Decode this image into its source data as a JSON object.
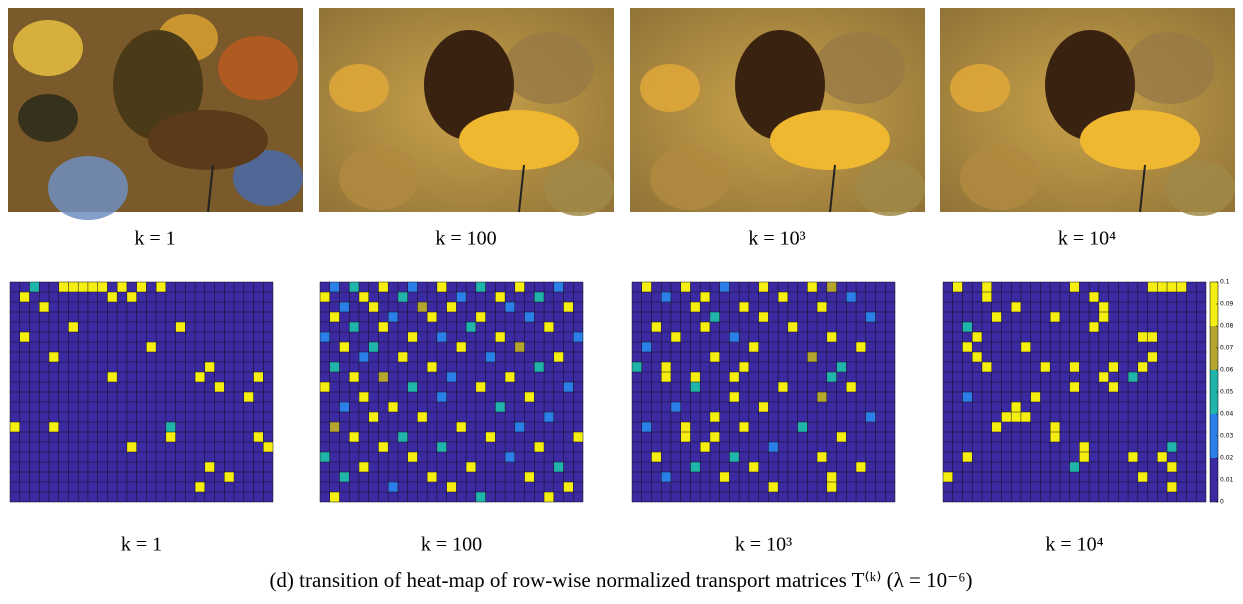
{
  "top_row": {
    "labels": [
      "k = 1",
      "k = 100",
      "k = 10³",
      "k = 10⁴"
    ]
  },
  "bottom_row": {
    "labels": [
      "k = 1",
      "k = 100",
      "k = 10³",
      "k = 10⁴"
    ],
    "heatmaps": [
      {
        "cells": [
          [
            0,
            2,
            0.05
          ],
          [
            0,
            5,
            0.1
          ],
          [
            0,
            6,
            0.1
          ],
          [
            0,
            7,
            0.1
          ],
          [
            0,
            8,
            0.1
          ],
          [
            0,
            9,
            0.1
          ],
          [
            0,
            11,
            0.1
          ],
          [
            0,
            13,
            0.1
          ],
          [
            0,
            15,
            0.1
          ],
          [
            1,
            1,
            0.1
          ],
          [
            1,
            10,
            0.1
          ],
          [
            1,
            12,
            0.1
          ],
          [
            2,
            3,
            0.1
          ],
          [
            4,
            6,
            0.1
          ],
          [
            4,
            17,
            0.1
          ],
          [
            5,
            1,
            0.1
          ],
          [
            6,
            14,
            0.1
          ],
          [
            7,
            4,
            0.1
          ],
          [
            8,
            20,
            0.1
          ],
          [
            9,
            10,
            0.1
          ],
          [
            9,
            19,
            0.1
          ],
          [
            9,
            25,
            0.1
          ],
          [
            10,
            21,
            0.1
          ],
          [
            11,
            24,
            0.1
          ],
          [
            14,
            0,
            0.1
          ],
          [
            14,
            4,
            0.1
          ],
          [
            14,
            16,
            0.05
          ],
          [
            15,
            16,
            0.1
          ],
          [
            15,
            25,
            0.1
          ],
          [
            16,
            12,
            0.1
          ],
          [
            16,
            26,
            0.1
          ],
          [
            18,
            20,
            0.1
          ],
          [
            19,
            22,
            0.1
          ],
          [
            20,
            19,
            0.1
          ]
        ]
      },
      {
        "cells": [
          [
            0,
            1,
            0.03
          ],
          [
            0,
            3,
            0.05
          ],
          [
            0,
            6,
            0.1
          ],
          [
            0,
            9,
            0.03
          ],
          [
            0,
            12,
            0.1
          ],
          [
            0,
            16,
            0.05
          ],
          [
            0,
            20,
            0.1
          ],
          [
            0,
            24,
            0.03
          ],
          [
            1,
            0,
            0.1
          ],
          [
            1,
            4,
            0.1
          ],
          [
            1,
            8,
            0.05
          ],
          [
            1,
            14,
            0.03
          ],
          [
            1,
            18,
            0.1
          ],
          [
            1,
            22,
            0.05
          ],
          [
            2,
            2,
            0.03
          ],
          [
            2,
            5,
            0.1
          ],
          [
            2,
            10,
            0.07
          ],
          [
            2,
            13,
            0.1
          ],
          [
            2,
            19,
            0.03
          ],
          [
            2,
            25,
            0.1
          ],
          [
            3,
            1,
            0.1
          ],
          [
            3,
            7,
            0.03
          ],
          [
            3,
            11,
            0.1
          ],
          [
            3,
            16,
            0.1
          ],
          [
            3,
            21,
            0.03
          ],
          [
            4,
            3,
            0.05
          ],
          [
            4,
            6,
            0.1
          ],
          [
            4,
            15,
            0.05
          ],
          [
            4,
            23,
            0.1
          ],
          [
            5,
            0,
            0.03
          ],
          [
            5,
            9,
            0.1
          ],
          [
            5,
            12,
            0.03
          ],
          [
            5,
            18,
            0.1
          ],
          [
            5,
            26,
            0.03
          ],
          [
            6,
            2,
            0.1
          ],
          [
            6,
            5,
            0.05
          ],
          [
            6,
            14,
            0.1
          ],
          [
            6,
            20,
            0.07
          ],
          [
            7,
            4,
            0.03
          ],
          [
            7,
            8,
            0.1
          ],
          [
            7,
            17,
            0.03
          ],
          [
            7,
            24,
            0.1
          ],
          [
            8,
            1,
            0.05
          ],
          [
            8,
            11,
            0.1
          ],
          [
            8,
            22,
            0.05
          ],
          [
            9,
            3,
            0.1
          ],
          [
            9,
            6,
            0.07
          ],
          [
            9,
            13,
            0.03
          ],
          [
            9,
            19,
            0.1
          ],
          [
            10,
            0,
            0.1
          ],
          [
            10,
            9,
            0.05
          ],
          [
            10,
            16,
            0.1
          ],
          [
            10,
            25,
            0.03
          ],
          [
            11,
            4,
            0.1
          ],
          [
            11,
            12,
            0.03
          ],
          [
            11,
            21,
            0.1
          ],
          [
            12,
            2,
            0.03
          ],
          [
            12,
            7,
            0.1
          ],
          [
            12,
            18,
            0.05
          ],
          [
            13,
            5,
            0.1
          ],
          [
            13,
            10,
            0.1
          ],
          [
            13,
            23,
            0.03
          ],
          [
            14,
            1,
            0.07
          ],
          [
            14,
            14,
            0.1
          ],
          [
            14,
            20,
            0.03
          ],
          [
            15,
            3,
            0.1
          ],
          [
            15,
            8,
            0.05
          ],
          [
            15,
            17,
            0.1
          ],
          [
            15,
            26,
            0.1
          ],
          [
            16,
            6,
            0.1
          ],
          [
            16,
            12,
            0.05
          ],
          [
            16,
            22,
            0.1
          ],
          [
            17,
            0,
            0.05
          ],
          [
            17,
            9,
            0.1
          ],
          [
            17,
            19,
            0.03
          ],
          [
            18,
            4,
            0.1
          ],
          [
            18,
            15,
            0.1
          ],
          [
            18,
            24,
            0.05
          ],
          [
            19,
            2,
            0.05
          ],
          [
            19,
            11,
            0.1
          ],
          [
            19,
            21,
            0.1
          ],
          [
            20,
            7,
            0.03
          ],
          [
            20,
            13,
            0.1
          ],
          [
            20,
            25,
            0.1
          ],
          [
            21,
            1,
            0.1
          ],
          [
            21,
            16,
            0.05
          ],
          [
            21,
            23,
            0.1
          ]
        ]
      },
      {
        "cells": [
          [
            0,
            1,
            0.1
          ],
          [
            0,
            5,
            0.1
          ],
          [
            0,
            9,
            0.03
          ],
          [
            0,
            13,
            0.1
          ],
          [
            0,
            18,
            0.1
          ],
          [
            0,
            20,
            0.07
          ],
          [
            1,
            3,
            0.03
          ],
          [
            1,
            7,
            0.1
          ],
          [
            1,
            15,
            0.1
          ],
          [
            1,
            22,
            0.03
          ],
          [
            2,
            6,
            0.1
          ],
          [
            2,
            11,
            0.1
          ],
          [
            2,
            19,
            0.1
          ],
          [
            3,
            8,
            0.05
          ],
          [
            3,
            13,
            0.1
          ],
          [
            3,
            24,
            0.03
          ],
          [
            4,
            2,
            0.1
          ],
          [
            4,
            7,
            0.1
          ],
          [
            4,
            16,
            0.1
          ],
          [
            5,
            4,
            0.1
          ],
          [
            5,
            10,
            0.03
          ],
          [
            5,
            20,
            0.1
          ],
          [
            6,
            1,
            0.03
          ],
          [
            6,
            12,
            0.1
          ],
          [
            6,
            23,
            0.1
          ],
          [
            7,
            8,
            0.1
          ],
          [
            7,
            18,
            0.07
          ],
          [
            8,
            0,
            0.05
          ],
          [
            8,
            3,
            0.1
          ],
          [
            8,
            11,
            0.1
          ],
          [
            8,
            21,
            0.05
          ],
          [
            9,
            3,
            0.1
          ],
          [
            9,
            6,
            0.1
          ],
          [
            9,
            10,
            0.1
          ],
          [
            9,
            20,
            0.05
          ],
          [
            10,
            6,
            0.05
          ],
          [
            10,
            15,
            0.1
          ],
          [
            10,
            22,
            0.1
          ],
          [
            11,
            10,
            0.1
          ],
          [
            11,
            19,
            0.07
          ],
          [
            12,
            4,
            0.03
          ],
          [
            12,
            13,
            0.1
          ],
          [
            13,
            8,
            0.1
          ],
          [
            13,
            24,
            0.03
          ],
          [
            14,
            1,
            0.03
          ],
          [
            14,
            5,
            0.1
          ],
          [
            14,
            11,
            0.1
          ],
          [
            14,
            17,
            0.05
          ],
          [
            15,
            5,
            0.1
          ],
          [
            15,
            8,
            0.1
          ],
          [
            15,
            21,
            0.1
          ],
          [
            16,
            7,
            0.1
          ],
          [
            16,
            14,
            0.03
          ],
          [
            17,
            2,
            0.1
          ],
          [
            17,
            10,
            0.05
          ],
          [
            17,
            19,
            0.1
          ],
          [
            18,
            6,
            0.05
          ],
          [
            18,
            12,
            0.1
          ],
          [
            18,
            23,
            0.1
          ],
          [
            19,
            3,
            0.03
          ],
          [
            19,
            9,
            0.1
          ],
          [
            19,
            20,
            0.1
          ],
          [
            20,
            14,
            0.1
          ],
          [
            20,
            20,
            0.1
          ]
        ]
      },
      {
        "cells": [
          [
            0,
            1,
            0.1
          ],
          [
            0,
            4,
            0.1
          ],
          [
            0,
            13,
            0.1
          ],
          [
            0,
            21,
            0.1
          ],
          [
            0,
            22,
            0.1
          ],
          [
            0,
            23,
            0.1
          ],
          [
            0,
            24,
            0.1
          ],
          [
            1,
            4,
            0.1
          ],
          [
            1,
            15,
            0.1
          ],
          [
            2,
            7,
            0.1
          ],
          [
            2,
            16,
            0.1
          ],
          [
            3,
            5,
            0.1
          ],
          [
            3,
            11,
            0.1
          ],
          [
            3,
            16,
            0.1
          ],
          [
            4,
            2,
            0.05
          ],
          [
            4,
            15,
            0.1
          ],
          [
            5,
            3,
            0.1
          ],
          [
            5,
            20,
            0.1
          ],
          [
            5,
            21,
            0.1
          ],
          [
            6,
            2,
            0.1
          ],
          [
            6,
            8,
            0.1
          ],
          [
            7,
            3,
            0.1
          ],
          [
            7,
            21,
            0.1
          ],
          [
            8,
            4,
            0.1
          ],
          [
            8,
            10,
            0.1
          ],
          [
            8,
            13,
            0.1
          ],
          [
            8,
            17,
            0.1
          ],
          [
            8,
            20,
            0.1
          ],
          [
            9,
            16,
            0.1
          ],
          [
            9,
            19,
            0.05
          ],
          [
            10,
            13,
            0.1
          ],
          [
            10,
            17,
            0.1
          ],
          [
            11,
            2,
            0.03
          ],
          [
            11,
            9,
            0.1
          ],
          [
            12,
            7,
            0.1
          ],
          [
            13,
            6,
            0.1
          ],
          [
            13,
            7,
            0.1
          ],
          [
            13,
            8,
            0.1
          ],
          [
            14,
            5,
            0.1
          ],
          [
            14,
            11,
            0.1
          ],
          [
            15,
            11,
            0.1
          ],
          [
            16,
            14,
            0.1
          ],
          [
            16,
            23,
            0.05
          ],
          [
            17,
            2,
            0.1
          ],
          [
            17,
            14,
            0.1
          ],
          [
            17,
            19,
            0.1
          ],
          [
            17,
            22,
            0.1
          ],
          [
            18,
            13,
            0.05
          ],
          [
            18,
            23,
            0.1
          ],
          [
            19,
            0,
            0.1
          ],
          [
            19,
            20,
            0.1
          ],
          [
            20,
            23,
            0.1
          ]
        ]
      }
    ]
  },
  "colorbar": {
    "ticks": [
      0,
      0.01,
      0.02,
      0.03,
      0.04,
      0.05,
      0.06,
      0.07,
      0.08,
      0.09,
      0.1
    ],
    "colors": [
      "#3b2aa2",
      "#2a7fe8",
      "#20b5aa",
      "#b4a52e",
      "#f5ee10"
    ]
  },
  "caption": "(d) transition of heat-map of row-wise normalized transport matrices T⁽ᵏ⁾ (λ = 10⁻⁶)"
}
